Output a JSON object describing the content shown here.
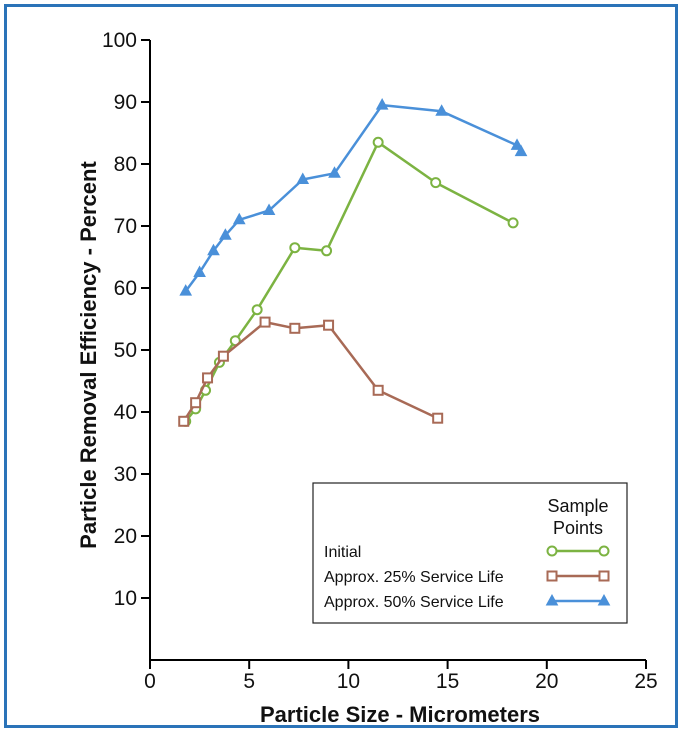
{
  "chart_data": {
    "type": "line",
    "xlabel": "Particle Size - Micrometers",
    "ylabel": "Particle Removal Efficiency - Percent",
    "xlim": [
      0,
      25
    ],
    "ylim": [
      0,
      100
    ],
    "xticks": [
      0,
      5,
      10,
      15,
      20,
      25
    ],
    "yticks": [
      10,
      20,
      30,
      40,
      50,
      60,
      70,
      80,
      90,
      100
    ],
    "grid": false,
    "legend": {
      "placement": "bottom-right",
      "header_line1": "Sample",
      "header_line2": "Points"
    },
    "series": [
      {
        "name": "Initial",
        "color": "#7cb342",
        "marker": "circle",
        "x": [
          1.8,
          2.3,
          2.8,
          3.5,
          4.3,
          5.4,
          7.3,
          8.9,
          11.5,
          14.4,
          18.3
        ],
        "y": [
          38.5,
          40.5,
          43.5,
          48,
          51.5,
          56.5,
          66.5,
          66,
          83.5,
          77,
          70.5
        ]
      },
      {
        "name": "Approx. 25% Service Life",
        "color": "#a86a56",
        "marker": "square",
        "x": [
          1.7,
          2.3,
          2.9,
          3.7,
          5.8,
          7.3,
          9.0,
          11.5,
          14.5
        ],
        "y": [
          38.5,
          41.5,
          45.5,
          49,
          54.5,
          53.5,
          54,
          43.5,
          39
        ]
      },
      {
        "name": "Approx. 50% Service Life",
        "color": "#4a90d9",
        "marker": "triangle",
        "x": [
          1.8,
          2.5,
          3.2,
          3.8,
          4.5,
          6.0,
          7.7,
          9.3,
          11.7,
          14.7,
          18.5,
          18.7
        ],
        "y": [
          59.5,
          62.5,
          66,
          68.5,
          71,
          72.5,
          77.5,
          78.5,
          89.5,
          88.5,
          83,
          82
        ]
      }
    ]
  }
}
